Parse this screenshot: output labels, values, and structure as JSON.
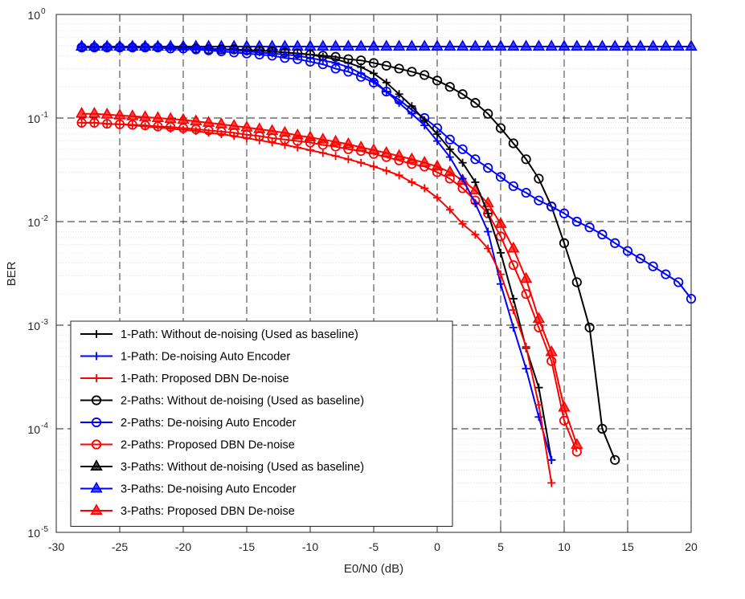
{
  "chart_data": {
    "type": "line",
    "title": "",
    "xlabel": "E0/N0 (dB)",
    "ylabel": "BER",
    "x_scale": "linear",
    "y_scale": "log",
    "xlim": [
      -30,
      20
    ],
    "ylim": [
      1e-05,
      1
    ],
    "x_ticks": [
      -30,
      -25,
      -20,
      -15,
      -10,
      -5,
      0,
      5,
      10,
      15,
      20
    ],
    "x_tick_labels": [
      "-30",
      "-25",
      "-20",
      "-15",
      "-10",
      "-5",
      "0",
      "5",
      "10",
      "15",
      "20"
    ],
    "y_ticks": [
      1e-05,
      0.0001,
      0.001,
      0.01,
      0.1,
      1
    ],
    "y_tick_base": "10",
    "y_tick_exponents": [
      "-5",
      "-4",
      "-3",
      "-2",
      "-1",
      "0"
    ],
    "grid": true,
    "legend_position": "bottom-left",
    "series": [
      {
        "name": "1-Path: Without de-noising (Used as baseline)",
        "color": "#000000",
        "marker": "plus",
        "x": [
          -28,
          -27,
          -26,
          -25,
          -24,
          -23,
          -22,
          -21,
          -20,
          -19,
          -18,
          -17,
          -16,
          -15,
          -14,
          -13,
          -12,
          -11,
          -10,
          -9,
          -8,
          -7,
          -6,
          -5,
          -4,
          -3,
          -2,
          -1,
          0,
          1,
          2,
          3,
          4,
          5,
          6,
          7,
          8,
          9
        ],
        "y": [
          0.48,
          0.48,
          0.48,
          0.48,
          0.48,
          0.48,
          0.48,
          0.48,
          0.48,
          0.47,
          0.47,
          0.46,
          0.46,
          0.45,
          0.45,
          0.44,
          0.43,
          0.42,
          0.41,
          0.39,
          0.37,
          0.34,
          0.31,
          0.27,
          0.22,
          0.17,
          0.13,
          0.095,
          0.07,
          0.05,
          0.037,
          0.024,
          0.012,
          0.005,
          0.0018,
          0.0006,
          0.00025,
          5e-05
        ]
      },
      {
        "name": "1-Path: De-noising Auto Encoder",
        "color": "#0000ff",
        "marker": "plus",
        "x": [
          -28,
          -27,
          -26,
          -25,
          -24,
          -23,
          -22,
          -21,
          -20,
          -19,
          -18,
          -17,
          -16,
          -15,
          -14,
          -13,
          -12,
          -11,
          -10,
          -9,
          -8,
          -7,
          -6,
          -5,
          -4,
          -3,
          -2,
          -1,
          0,
          1,
          2,
          3,
          4,
          5,
          6,
          7,
          8,
          9
        ],
        "y": [
          0.48,
          0.48,
          0.48,
          0.48,
          0.48,
          0.48,
          0.48,
          0.48,
          0.47,
          0.47,
          0.46,
          0.46,
          0.45,
          0.44,
          0.43,
          0.42,
          0.41,
          0.4,
          0.38,
          0.36,
          0.34,
          0.31,
          0.27,
          0.23,
          0.18,
          0.14,
          0.11,
          0.085,
          0.06,
          0.042,
          0.026,
          0.015,
          0.008,
          0.0025,
          0.00095,
          0.00038,
          0.00013,
          5e-05
        ]
      },
      {
        "name": "1-Path: Proposed DBN De-noise",
        "color": "#ff0000",
        "marker": "plus",
        "x": [
          -28,
          -27,
          -26,
          -25,
          -24,
          -23,
          -22,
          -21,
          -20,
          -19,
          -18,
          -17,
          -16,
          -15,
          -14,
          -13,
          -12,
          -11,
          -10,
          -9,
          -8,
          -7,
          -6,
          -5,
          -4,
          -3,
          -2,
          -1,
          0,
          1,
          2,
          3,
          4,
          5,
          6,
          7,
          8,
          9
        ],
        "y": [
          0.09,
          0.09,
          0.088,
          0.087,
          0.085,
          0.083,
          0.081,
          0.079,
          0.077,
          0.075,
          0.072,
          0.07,
          0.067,
          0.064,
          0.061,
          0.058,
          0.055,
          0.052,
          0.049,
          0.046,
          0.043,
          0.04,
          0.037,
          0.034,
          0.031,
          0.028,
          0.024,
          0.021,
          0.017,
          0.013,
          0.0095,
          0.0075,
          0.0055,
          0.0031,
          0.0014,
          0.00062,
          0.00017,
          3e-05
        ]
      },
      {
        "name": "2-Paths: Without de-noising (Used as baseline)",
        "color": "#000000",
        "marker": "circle",
        "x": [
          -28,
          -27,
          -26,
          -25,
          -24,
          -23,
          -22,
          -21,
          -20,
          -19,
          -18,
          -17,
          -16,
          -15,
          -14,
          -13,
          -12,
          -11,
          -10,
          -9,
          -8,
          -7,
          -6,
          -5,
          -4,
          -3,
          -2,
          -1,
          0,
          1,
          2,
          3,
          4,
          5,
          6,
          7,
          8,
          9,
          10,
          11,
          12,
          13,
          14
        ],
        "y": [
          0.48,
          0.48,
          0.48,
          0.48,
          0.48,
          0.48,
          0.48,
          0.47,
          0.47,
          0.47,
          0.46,
          0.46,
          0.46,
          0.45,
          0.45,
          0.44,
          0.43,
          0.42,
          0.41,
          0.4,
          0.39,
          0.37,
          0.36,
          0.34,
          0.32,
          0.3,
          0.28,
          0.26,
          0.23,
          0.2,
          0.17,
          0.14,
          0.11,
          0.08,
          0.057,
          0.04,
          0.026,
          0.014,
          0.0062,
          0.0026,
          0.00095,
          0.0001,
          5e-05
        ]
      },
      {
        "name": "2-Paths: De-noising Auto Encoder",
        "color": "#0000ff",
        "marker": "circle",
        "x": [
          -28,
          -27,
          -26,
          -25,
          -24,
          -23,
          -22,
          -21,
          -20,
          -19,
          -18,
          -17,
          -16,
          -15,
          -14,
          -13,
          -12,
          -11,
          -10,
          -9,
          -8,
          -7,
          -6,
          -5,
          -4,
          -3,
          -2,
          -1,
          0,
          1,
          2,
          3,
          4,
          5,
          6,
          7,
          8,
          9,
          10,
          11,
          12,
          13,
          14,
          15,
          16,
          17,
          18,
          19,
          20
        ],
        "y": [
          0.48,
          0.48,
          0.48,
          0.48,
          0.48,
          0.48,
          0.48,
          0.47,
          0.47,
          0.46,
          0.45,
          0.44,
          0.43,
          0.42,
          0.41,
          0.4,
          0.38,
          0.37,
          0.35,
          0.33,
          0.3,
          0.28,
          0.25,
          0.22,
          0.18,
          0.15,
          0.12,
          0.1,
          0.08,
          0.062,
          0.05,
          0.04,
          0.033,
          0.027,
          0.022,
          0.019,
          0.016,
          0.014,
          0.012,
          0.01,
          0.0088,
          0.0075,
          0.0062,
          0.0052,
          0.0044,
          0.0037,
          0.0031,
          0.0026,
          0.0018
        ]
      },
      {
        "name": "2-Paths: Proposed DBN De-noise",
        "color": "#ff0000",
        "marker": "circle",
        "x": [
          -28,
          -27,
          -26,
          -25,
          -24,
          -23,
          -22,
          -21,
          -20,
          -19,
          -18,
          -17,
          -16,
          -15,
          -14,
          -13,
          -12,
          -11,
          -10,
          -9,
          -8,
          -7,
          -6,
          -5,
          -4,
          -3,
          -2,
          -1,
          0,
          1,
          2,
          3,
          4,
          5,
          6,
          7,
          8,
          9,
          10,
          11
        ],
        "y": [
          0.09,
          0.09,
          0.088,
          0.087,
          0.086,
          0.085,
          0.083,
          0.082,
          0.08,
          0.078,
          0.076,
          0.074,
          0.072,
          0.069,
          0.067,
          0.064,
          0.062,
          0.06,
          0.058,
          0.055,
          0.053,
          0.05,
          0.048,
          0.045,
          0.042,
          0.039,
          0.036,
          0.034,
          0.03,
          0.026,
          0.021,
          0.016,
          0.012,
          0.0072,
          0.0038,
          0.002,
          0.00095,
          0.00045,
          0.00012,
          6e-05
        ]
      },
      {
        "name": "3-Paths: Without de-noising (Used as baseline)",
        "color": "#000000",
        "marker": "triangle",
        "x": [],
        "y": []
      },
      {
        "name": "3-Paths: De-noising Auto Encoder",
        "color": "#0000ff",
        "marker": "triangle",
        "x": [
          -28,
          -27,
          -26,
          -25,
          -24,
          -23,
          -22,
          -21,
          -20,
          -19,
          -18,
          -17,
          -16,
          -15,
          -14,
          -13,
          -12,
          -11,
          -10,
          -9,
          -8,
          -7,
          -6,
          -5,
          -4,
          -3,
          -2,
          -1,
          0,
          1,
          2,
          3,
          4,
          5,
          6,
          7,
          8,
          9,
          10,
          11,
          12,
          13,
          14,
          15,
          16,
          17,
          18,
          19,
          20
        ],
        "y": [
          0.49,
          0.49,
          0.49,
          0.49,
          0.49,
          0.49,
          0.49,
          0.49,
          0.49,
          0.49,
          0.49,
          0.49,
          0.49,
          0.49,
          0.49,
          0.49,
          0.49,
          0.49,
          0.49,
          0.49,
          0.49,
          0.49,
          0.49,
          0.49,
          0.49,
          0.49,
          0.49,
          0.49,
          0.49,
          0.49,
          0.49,
          0.49,
          0.49,
          0.49,
          0.49,
          0.49,
          0.49,
          0.49,
          0.49,
          0.49,
          0.49,
          0.49,
          0.49,
          0.49,
          0.49,
          0.49,
          0.49,
          0.49,
          0.49
        ]
      },
      {
        "name": "3-Paths: Proposed DBN De-noise",
        "color": "#ff0000",
        "marker": "triangle",
        "x": [
          -28,
          -27,
          -26,
          -25,
          -24,
          -23,
          -22,
          -21,
          -20,
          -19,
          -18,
          -17,
          -16,
          -15,
          -14,
          -13,
          -12,
          -11,
          -10,
          -9,
          -8,
          -7,
          -6,
          -5,
          -4,
          -3,
          -2,
          -1,
          0,
          1,
          2,
          3,
          4,
          5,
          6,
          7,
          8,
          9,
          10,
          11
        ],
        "y": [
          0.11,
          0.11,
          0.108,
          0.106,
          0.104,
          0.102,
          0.1,
          0.098,
          0.096,
          0.093,
          0.09,
          0.087,
          0.084,
          0.081,
          0.078,
          0.075,
          0.072,
          0.068,
          0.065,
          0.062,
          0.059,
          0.056,
          0.052,
          0.049,
          0.046,
          0.043,
          0.04,
          0.037,
          0.034,
          0.03,
          0.025,
          0.02,
          0.015,
          0.0095,
          0.0055,
          0.0028,
          0.00115,
          0.00055,
          0.00016,
          7e-05
        ]
      }
    ]
  }
}
